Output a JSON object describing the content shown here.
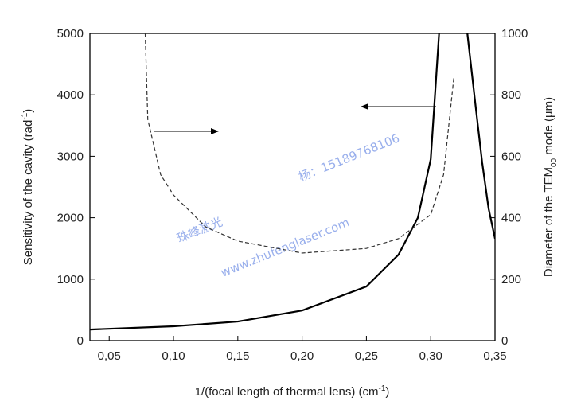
{
  "chart_data": {
    "type": "line",
    "x_label": [
      "1/(focal length of thermal lens) (cm",
      "-1",
      ")"
    ],
    "y_label": [
      "Sensitivity of the cavity (rad",
      "-1",
      ")"
    ],
    "y2_label": [
      "Diameter of the TEM",
      "00",
      " mode (µm)"
    ],
    "xlim": [
      0.035,
      0.35
    ],
    "ylim": [
      0,
      5000
    ],
    "y2lim": [
      0,
      1000
    ],
    "xticks": [
      {
        "value": 0.05,
        "label": "0,05"
      },
      {
        "value": 0.1,
        "label": "0,10"
      },
      {
        "value": 0.15,
        "label": "0,15"
      },
      {
        "value": 0.2,
        "label": "0,20"
      },
      {
        "value": 0.25,
        "label": "0,25"
      },
      {
        "value": 0.3,
        "label": "0,30"
      },
      {
        "value": 0.35,
        "label": "0,35"
      }
    ],
    "yticks": [
      0,
      1000,
      2000,
      3000,
      4000,
      5000
    ],
    "y2ticks": [
      0,
      200,
      400,
      600,
      800,
      1000
    ],
    "series": [
      {
        "color": "#000000",
        "dash": false,
        "axis": "y",
        "x": [
          0.035,
          0.1,
          0.15,
          0.2,
          0.25,
          0.275,
          0.29,
          0.3,
          0.3065,
          null,
          0.3285,
          0.335,
          0.34,
          0.345,
          0.35
        ],
        "values": [
          180,
          233,
          310,
          490,
          880,
          1400,
          2000,
          2950,
          5000,
          null,
          5000,
          3800,
          2900,
          2150,
          1660
        ]
      },
      {
        "color": "#333333",
        "dash": true,
        "axis": "y2",
        "x": [
          0.078,
          0.08,
          0.09,
          0.1,
          0.125,
          0.15,
          0.2,
          0.25,
          0.275,
          0.3,
          0.31,
          0.318
        ],
        "values": [
          1000,
          720,
          540,
          474,
          370,
          324,
          285,
          300,
          332,
          410,
          540,
          857
        ]
      }
    ],
    "annotations": [
      "珠峰激光",
      "杨：15189768106",
      "www.zhufenglaser.com"
    ]
  }
}
